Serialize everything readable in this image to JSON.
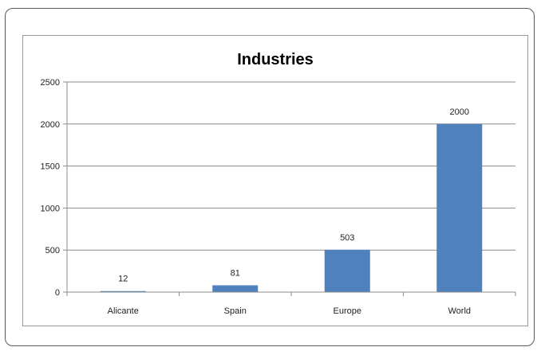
{
  "chart_data": {
    "type": "bar",
    "title": "Industries",
    "categories": [
      "Alicante",
      "Spain",
      "Europe",
      "World"
    ],
    "values": [
      12,
      81,
      503,
      2000
    ],
    "data_labels": [
      "12",
      "81",
      "503",
      "2000"
    ],
    "ylim": [
      0,
      2500
    ],
    "y_ticks": [
      0,
      500,
      1000,
      1500,
      2000,
      2500
    ],
    "y_tick_labels": [
      "0",
      "500",
      "1000",
      "1500",
      "2000",
      "2500"
    ],
    "xlabel": "",
    "ylabel": "",
    "grid": true,
    "legend": false,
    "bar_color": "#4f81bd",
    "grid_color": "#8c8c8c"
  }
}
